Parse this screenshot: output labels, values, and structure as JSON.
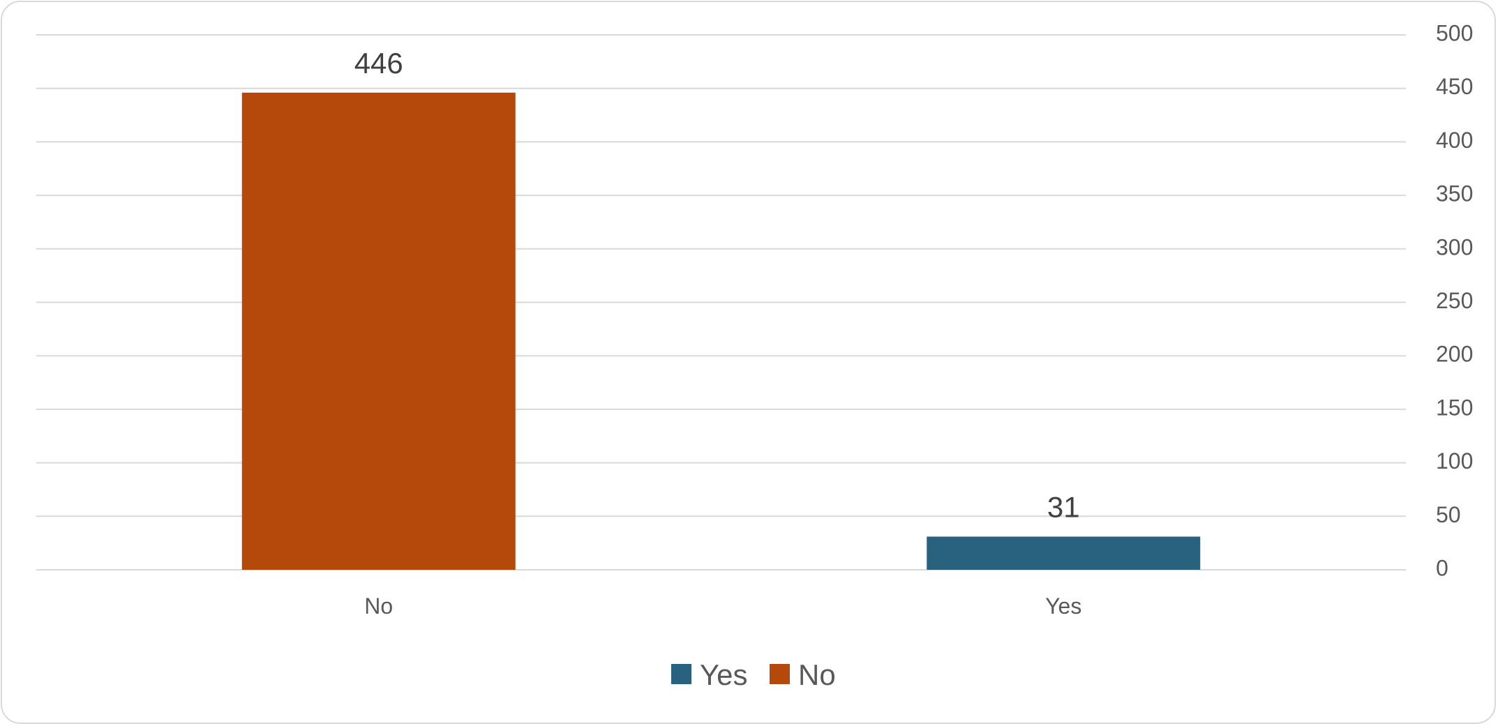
{
  "chart_data": {
    "type": "bar",
    "categories": [
      "No",
      "Yes"
    ],
    "values": [
      446,
      31
    ],
    "data_labels": [
      "446",
      "31"
    ],
    "bar_colors": [
      "#b5490b",
      "#29627e"
    ],
    "ylim": [
      0,
      500
    ],
    "y_ticks": [
      0,
      50,
      100,
      150,
      200,
      250,
      300,
      350,
      400,
      450,
      500
    ],
    "y_axis_side": "right",
    "grid": true,
    "legend": {
      "placement": "bottom-center",
      "items": [
        {
          "label": "Yes",
          "color": "#29627e"
        },
        {
          "label": "No",
          "color": "#b5490b"
        }
      ]
    },
    "title": "",
    "xlabel": "",
    "ylabel": ""
  }
}
